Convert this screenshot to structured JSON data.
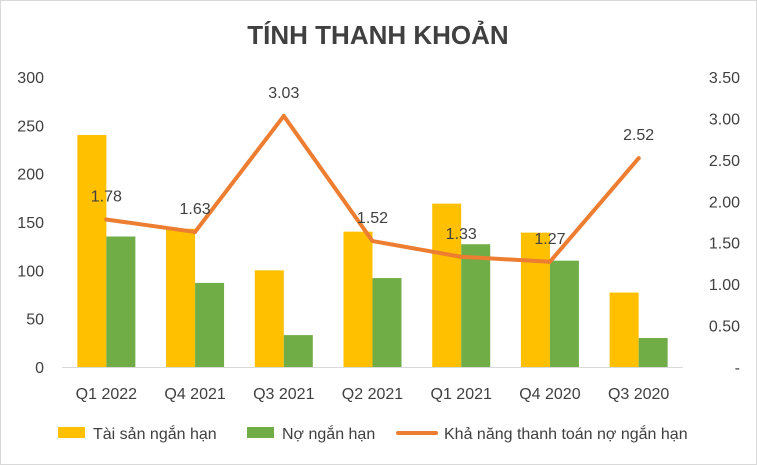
{
  "chart_data": {
    "type": "bar",
    "title": "TÍNH THANH KHOẢN",
    "categories": [
      "Q1 2022",
      "Q4 2021",
      "Q3 2021",
      "Q2 2021",
      "Q1 2021",
      "Q4 2020",
      "Q3 2020"
    ],
    "series": [
      {
        "name": "Tài sản ngắn hạn",
        "type": "bar",
        "axis": "left",
        "color": "#ffc000",
        "values": [
          240,
          143,
          100,
          140,
          169,
          139,
          77
        ]
      },
      {
        "name": "Nợ ngắn hạn",
        "type": "bar",
        "axis": "left",
        "color": "#70ad47",
        "values": [
          135,
          87,
          33,
          92,
          127,
          110,
          30
        ]
      },
      {
        "name": "Khả năng thanh toán nợ ngắn hạn",
        "type": "line",
        "axis": "right",
        "color": "#ed7d31",
        "values": [
          1.78,
          1.63,
          3.03,
          1.52,
          1.33,
          1.27,
          2.52
        ],
        "labels": [
          "1.78",
          "1.63",
          "3.03",
          "1.52",
          "1.33",
          "1.27",
          "2.52"
        ]
      }
    ],
    "y_left": {
      "ylim": [
        0,
        300
      ],
      "ticks": [
        "0",
        "50",
        "100",
        "150",
        "200",
        "250",
        "300"
      ]
    },
    "y_right": {
      "ylim": [
        0,
        3.5
      ],
      "ticks": [
        "-",
        "0.50",
        "1.00",
        "1.50",
        "2.00",
        "2.50",
        "3.00",
        "3.50"
      ]
    },
    "grid": false,
    "legend": "bottom"
  }
}
